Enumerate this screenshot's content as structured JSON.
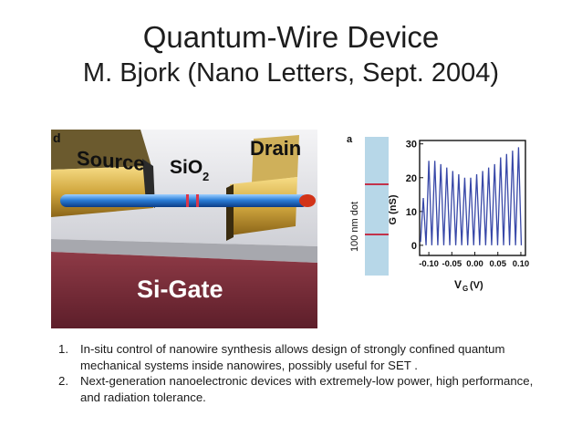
{
  "slide": {
    "title": "Quantum-Wire Device",
    "subtitle": "M. Bjork (Nano Letters, Sept. 2004)"
  },
  "device_figure": {
    "panel_letter": "d",
    "source_label": "Source",
    "drain_label": "Drain",
    "oxide_label": "SiO",
    "oxide_subscript": "2",
    "gate_label": "Si-Gate"
  },
  "wire_figure": {
    "panel_letter": "a",
    "scale_label": "100 nm dot"
  },
  "chart_data": {
    "type": "line",
    "title": "",
    "xlabel": "V",
    "xlabel_sub": "G",
    "xlabel_unit": "(V)",
    "ylabel": "G (nS)",
    "xlim": [
      -0.12,
      0.11
    ],
    "ylim": [
      -3,
      31
    ],
    "x_ticks": [
      "-0.10",
      "-0.05",
      "0.00",
      "0.05",
      "0.10"
    ],
    "y_ticks": [
      "0",
      "10",
      "20",
      "30"
    ],
    "series": [
      {
        "color": "#3848a8",
        "peaks": [
          {
            "x": -0.112,
            "y": 14
          },
          {
            "x": -0.1,
            "y": 25
          },
          {
            "x": -0.087,
            "y": 25
          },
          {
            "x": -0.074,
            "y": 24
          },
          {
            "x": -0.061,
            "y": 23
          },
          {
            "x": -0.048,
            "y": 22
          },
          {
            "x": -0.035,
            "y": 21
          },
          {
            "x": -0.022,
            "y": 20
          },
          {
            "x": -0.009,
            "y": 20
          },
          {
            "x": 0.004,
            "y": 21
          },
          {
            "x": 0.017,
            "y": 22
          },
          {
            "x": 0.03,
            "y": 23
          },
          {
            "x": 0.043,
            "y": 24
          },
          {
            "x": 0.056,
            "y": 26
          },
          {
            "x": 0.069,
            "y": 27
          },
          {
            "x": 0.082,
            "y": 28
          },
          {
            "x": 0.095,
            "y": 29
          }
        ],
        "baseline": 0
      }
    ]
  },
  "notes": [
    {
      "num": "1.",
      "text": "In-situ control of nanowire synthesis allows design of strongly confined quantum mechanical systems inside nanowires, possibly useful for SET ."
    },
    {
      "num": "2.",
      "text": "Next-generation nanoelectronic devices with extremely-low power, high performance, and radiation tolerance."
    }
  ]
}
